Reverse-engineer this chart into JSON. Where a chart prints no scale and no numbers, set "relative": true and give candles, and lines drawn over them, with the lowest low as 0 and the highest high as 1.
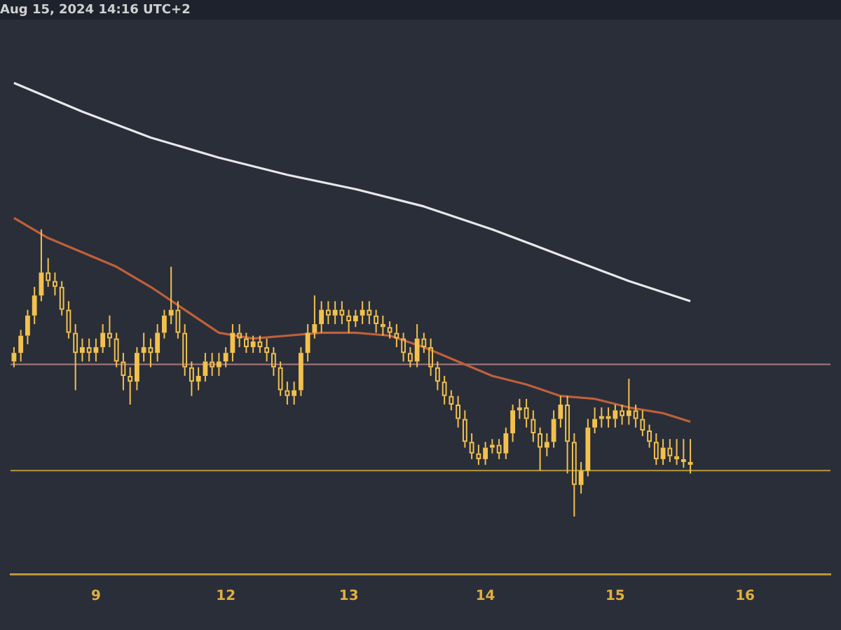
{
  "chart_data": {
    "type": "candlestick",
    "title": "Aug 15, 2024 14:16 UTC+2",
    "relative": true,
    "color": "#f2c14e",
    "categories": [
      null,
      null,
      null,
      null,
      null,
      null,
      null,
      null,
      null,
      null,
      null,
      null,
      "9",
      null,
      null,
      null,
      null,
      null,
      null,
      null,
      null,
      null,
      null,
      null,
      null,
      null,
      null,
      null,
      null,
      null,
      null,
      "12",
      null,
      null,
      null,
      null,
      null,
      null,
      null,
      null,
      null,
      null,
      null,
      null,
      null,
      null,
      null,
      null,
      null,
      "13",
      null,
      null,
      null,
      null,
      null,
      null,
      null,
      null,
      null,
      null,
      null,
      null,
      null,
      null,
      null,
      null,
      null,
      null,
      null,
      "14",
      null,
      null,
      null,
      null,
      null,
      null,
      null,
      null,
      null,
      null,
      null,
      null,
      null,
      null,
      null,
      null,
      null,
      null,
      "15",
      null,
      null,
      null,
      null,
      null,
      null,
      null,
      null,
      null,
      null,
      null,
      null,
      null,
      null,
      null,
      null,
      null,
      null,
      "16",
      null,
      null,
      null,
      null,
      null,
      null,
      null,
      null,
      null,
      null,
      null,
      null
    ],
    "ohlc": [
      [
        0.54,
        0.59,
        0.52,
        0.57
      ],
      [
        0.57,
        0.65,
        0.54,
        0.63
      ],
      [
        0.63,
        0.72,
        0.6,
        0.7
      ],
      [
        0.7,
        0.8,
        0.67,
        0.77
      ],
      [
        0.77,
        1.0,
        0.75,
        0.85
      ],
      [
        0.85,
        0.9,
        0.8,
        0.82
      ],
      [
        0.82,
        0.85,
        0.77,
        0.8
      ],
      [
        0.8,
        0.82,
        0.7,
        0.72
      ],
      [
        0.72,
        0.75,
        0.62,
        0.64
      ],
      [
        0.64,
        0.67,
        0.44,
        0.57
      ],
      [
        0.57,
        0.62,
        0.54,
        0.59
      ],
      [
        0.59,
        0.62,
        0.54,
        0.57
      ],
      [
        0.57,
        0.62,
        0.54,
        0.59
      ],
      [
        0.59,
        0.67,
        0.57,
        0.64
      ],
      [
        0.64,
        0.7,
        0.59,
        0.62
      ],
      [
        0.62,
        0.64,
        0.52,
        0.54
      ],
      [
        0.54,
        0.57,
        0.44,
        0.49
      ],
      [
        0.49,
        0.52,
        0.39,
        0.47
      ],
      [
        0.47,
        0.59,
        0.44,
        0.57
      ],
      [
        0.57,
        0.64,
        0.54,
        0.59
      ],
      [
        0.59,
        0.62,
        0.52,
        0.57
      ],
      [
        0.57,
        0.67,
        0.54,
        0.64
      ],
      [
        0.64,
        0.72,
        0.62,
        0.7
      ],
      [
        0.7,
        0.87,
        0.67,
        0.72
      ],
      [
        0.72,
        0.75,
        0.62,
        0.64
      ],
      [
        0.64,
        0.67,
        0.49,
        0.52
      ],
      [
        0.52,
        0.54,
        0.42,
        0.47
      ],
      [
        0.47,
        0.52,
        0.44,
        0.49
      ],
      [
        0.49,
        0.57,
        0.47,
        0.54
      ],
      [
        0.54,
        0.57,
        0.49,
        0.52
      ],
      [
        0.52,
        0.57,
        0.49,
        0.54
      ],
      [
        0.54,
        0.59,
        0.52,
        0.57
      ],
      [
        0.57,
        0.67,
        0.54,
        0.64
      ],
      [
        0.64,
        0.67,
        0.59,
        0.62
      ],
      [
        0.62,
        0.64,
        0.57,
        0.59
      ],
      [
        0.59,
        0.63,
        0.57,
        0.61
      ],
      [
        0.61,
        0.63,
        0.57,
        0.59
      ],
      [
        0.59,
        0.62,
        0.54,
        0.57
      ],
      [
        0.57,
        0.59,
        0.49,
        0.52
      ],
      [
        0.52,
        0.54,
        0.42,
        0.44
      ],
      [
        0.44,
        0.47,
        0.39,
        0.42
      ],
      [
        0.42,
        0.47,
        0.39,
        0.44
      ],
      [
        0.44,
        0.59,
        0.42,
        0.57
      ],
      [
        0.57,
        0.67,
        0.54,
        0.64
      ],
      [
        0.64,
        0.77,
        0.62,
        0.67
      ],
      [
        0.67,
        0.75,
        0.64,
        0.72
      ],
      [
        0.72,
        0.75,
        0.67,
        0.7
      ],
      [
        0.7,
        0.75,
        0.67,
        0.72
      ],
      [
        0.72,
        0.75,
        0.67,
        0.7
      ],
      [
        0.7,
        0.72,
        0.64,
        0.68
      ],
      [
        0.68,
        0.72,
        0.66,
        0.7
      ],
      [
        0.7,
        0.75,
        0.67,
        0.72
      ],
      [
        0.72,
        0.75,
        0.67,
        0.7
      ],
      [
        0.7,
        0.72,
        0.64,
        0.67
      ],
      [
        0.67,
        0.7,
        0.63,
        0.66
      ],
      [
        0.66,
        0.68,
        0.62,
        0.64
      ],
      [
        0.64,
        0.67,
        0.59,
        0.62
      ],
      [
        0.62,
        0.64,
        0.54,
        0.57
      ],
      [
        0.57,
        0.59,
        0.52,
        0.54
      ],
      [
        0.54,
        0.67,
        0.52,
        0.62
      ],
      [
        0.62,
        0.64,
        0.57,
        0.59
      ],
      [
        0.59,
        0.62,
        0.49,
        0.52
      ],
      [
        0.52,
        0.54,
        0.44,
        0.47
      ],
      [
        0.47,
        0.49,
        0.39,
        0.42
      ],
      [
        0.42,
        0.44,
        0.37,
        0.39
      ],
      [
        0.39,
        0.42,
        0.31,
        0.34
      ],
      [
        0.34,
        0.37,
        0.24,
        0.26
      ],
      [
        0.26,
        0.29,
        0.2,
        0.22
      ],
      [
        0.22,
        0.25,
        0.18,
        0.2
      ],
      [
        0.2,
        0.26,
        0.18,
        0.24
      ],
      [
        0.24,
        0.27,
        0.22,
        0.25
      ],
      [
        0.25,
        0.27,
        0.2,
        0.22
      ],
      [
        0.22,
        0.31,
        0.2,
        0.29
      ],
      [
        0.29,
        0.39,
        0.26,
        0.37
      ],
      [
        0.37,
        0.41,
        0.34,
        0.38
      ],
      [
        0.38,
        0.41,
        0.31,
        0.34
      ],
      [
        0.34,
        0.37,
        0.26,
        0.29
      ],
      [
        0.29,
        0.31,
        0.16,
        0.24
      ],
      [
        0.24,
        0.29,
        0.21,
        0.26
      ],
      [
        0.26,
        0.37,
        0.24,
        0.34
      ],
      [
        0.34,
        0.42,
        0.31,
        0.39
      ],
      [
        0.39,
        0.42,
        0.15,
        0.26
      ],
      [
        0.26,
        0.29,
        0,
        0.11
      ],
      [
        0.11,
        0.19,
        0.08,
        0.16
      ],
      [
        0.16,
        0.34,
        0.14,
        0.31
      ],
      [
        0.31,
        0.38,
        0.29,
        0.34
      ],
      [
        0.34,
        0.38,
        0.31,
        0.35
      ],
      [
        0.35,
        0.38,
        0.31,
        0.34
      ],
      [
        0.34,
        0.39,
        0.31,
        0.37
      ],
      [
        0.37,
        0.39,
        0.32,
        0.35
      ],
      [
        0.35,
        0.48,
        0.32,
        0.37
      ],
      [
        0.37,
        0.39,
        0.31,
        0.34
      ],
      [
        0.34,
        0.37,
        0.28,
        0.3
      ],
      [
        0.3,
        0.32,
        0.24,
        0.26
      ],
      [
        0.26,
        0.29,
        0.18,
        0.2
      ],
      [
        0.2,
        0.27,
        0.18,
        0.24
      ],
      [
        0.24,
        0.27,
        0.19,
        0.21
      ],
      [
        0.21,
        0.27,
        0.18,
        0.2
      ],
      [
        0.2,
        0.27,
        0.17,
        0.19
      ],
      [
        0.19,
        0.27,
        0.15,
        0.18
      ],
      null,
      null,
      null,
      null,
      null,
      null,
      null,
      null,
      null,
      null,
      null,
      null,
      null,
      null,
      null,
      null,
      null,
      null,
      null,
      null
    ],
    "series": [
      {
        "type": "line",
        "color": "#e8e8e8",
        "values": [
          1.51,
          null,
          null,
          null,
          null,
          null,
          null,
          null,
          null,
          null,
          1.41,
          null,
          null,
          null,
          null,
          null,
          null,
          null,
          null,
          null,
          1.32,
          null,
          null,
          null,
          null,
          null,
          null,
          null,
          null,
          null,
          1.25,
          null,
          null,
          null,
          null,
          null,
          null,
          null,
          null,
          null,
          1.19,
          null,
          null,
          null,
          null,
          null,
          null,
          null,
          null,
          null,
          1.14,
          null,
          null,
          null,
          null,
          null,
          null,
          null,
          null,
          null,
          1.08,
          null,
          null,
          null,
          null,
          null,
          null,
          null,
          null,
          null,
          1.0,
          null,
          null,
          null,
          null,
          null,
          null,
          null,
          null,
          null,
          0.91,
          null,
          null,
          null,
          null,
          null,
          null,
          null,
          null,
          null,
          0.82,
          null,
          null,
          null,
          null,
          null,
          null,
          null,
          null,
          0.75,
          null,
          null,
          null,
          null,
          null,
          null,
          null,
          null,
          null,
          null,
          null,
          null,
          null,
          null,
          null,
          null,
          null,
          null,
          null,
          null
        ]
      },
      {
        "type": "line",
        "color": "#c0603a",
        "values": [
          1.04,
          null,
          null,
          null,
          null,
          0.97,
          null,
          null,
          null,
          null,
          0.92,
          null,
          null,
          null,
          null,
          0.87,
          null,
          null,
          null,
          null,
          0.8,
          null,
          null,
          null,
          null,
          0.72,
          null,
          null,
          null,
          null,
          0.64,
          null,
          null,
          null,
          null,
          0.62,
          null,
          null,
          null,
          null,
          0.63,
          null,
          null,
          null,
          null,
          0.64,
          null,
          null,
          null,
          null,
          0.64,
          null,
          null,
          null,
          null,
          0.63,
          null,
          null,
          null,
          null,
          0.59,
          null,
          null,
          null,
          null,
          0.54,
          null,
          null,
          null,
          null,
          0.49,
          null,
          null,
          null,
          null,
          0.46,
          null,
          null,
          null,
          null,
          0.42,
          null,
          null,
          null,
          null,
          0.41,
          null,
          null,
          null,
          null,
          0.38,
          null,
          null,
          null,
          null,
          0.36,
          null,
          null,
          null,
          0.33,
          null,
          null,
          null,
          null,
          null,
          null,
          null,
          null,
          null,
          null,
          null,
          null,
          null,
          null,
          null,
          null,
          null,
          null,
          null,
          null
        ]
      }
    ],
    "ref_lines": [
      {
        "axis": "y",
        "value": 0.53,
        "color": "#a87a80"
      },
      {
        "axis": "y",
        "value": 0.16,
        "color": "#b8983e"
      }
    ]
  }
}
